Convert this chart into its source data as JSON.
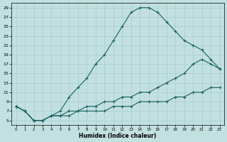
{
  "xlabel": "Humidex (Indice chaleur)",
  "background_color": "#c2e0e0",
  "grid_color": "#a8cccc",
  "line_color": "#1a6060",
  "xlim": [
    -0.5,
    23.5
  ],
  "ylim": [
    4,
    30
  ],
  "yticks": [
    5,
    7,
    9,
    11,
    13,
    15,
    17,
    19,
    21,
    23,
    25,
    27,
    29
  ],
  "xticks": [
    0,
    1,
    2,
    3,
    4,
    5,
    6,
    7,
    8,
    9,
    10,
    11,
    12,
    13,
    14,
    15,
    16,
    17,
    18,
    19,
    20,
    21,
    22,
    23
  ],
  "line1_x": [
    0,
    1,
    2,
    3,
    4,
    5,
    6,
    7,
    8,
    9,
    10,
    11,
    12,
    13,
    14,
    15,
    16,
    17,
    18,
    19,
    20,
    21,
    22,
    23
  ],
  "line1_y": [
    8,
    7,
    5,
    5,
    6,
    7,
    10,
    12,
    14,
    17,
    19,
    22,
    25,
    28,
    29,
    29,
    28,
    26,
    24,
    22,
    21,
    20,
    18,
    16
  ],
  "line2_x": [
    0,
    1,
    2,
    3,
    4,
    5,
    6,
    7,
    8,
    9,
    10,
    11,
    12,
    13,
    14,
    15,
    16,
    17,
    18,
    19,
    20,
    21,
    22,
    23
  ],
  "line2_y": [
    8,
    7,
    5,
    5,
    6,
    6,
    7,
    7,
    8,
    8,
    9,
    9,
    10,
    10,
    11,
    11,
    12,
    13,
    14,
    15,
    17,
    18,
    17,
    16
  ],
  "line3_x": [
    0,
    1,
    2,
    3,
    4,
    5,
    6,
    7,
    8,
    9,
    10,
    11,
    12,
    13,
    14,
    15,
    16,
    17,
    18,
    19,
    20,
    21,
    22,
    23
  ],
  "line3_y": [
    8,
    7,
    5,
    5,
    6,
    6,
    6,
    7,
    7,
    7,
    7,
    8,
    8,
    8,
    9,
    9,
    9,
    9,
    10,
    10,
    11,
    11,
    12,
    12
  ]
}
